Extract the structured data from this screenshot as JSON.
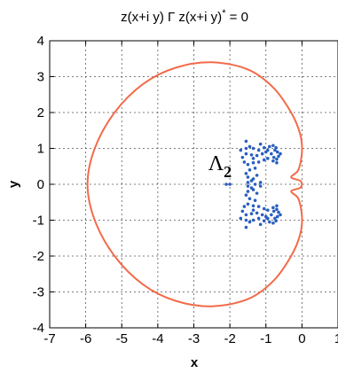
{
  "chart_data": {
    "type": "scatter",
    "title": {
      "main": "z(x+i y) Γ z(x+i y)",
      "sup": "*",
      "tail": " = 0"
    },
    "xlabel": "x",
    "ylabel": "y",
    "xlim": [
      -7,
      1
    ],
    "ylim": [
      -4,
      4
    ],
    "xticks": [
      "-7",
      "-6",
      "-5",
      "-4",
      "-3",
      "-2",
      "-1",
      "0",
      "1"
    ],
    "yticks": [
      "-4",
      "-3",
      "-2",
      "-1",
      "0",
      "1",
      "2",
      "3",
      "4"
    ],
    "grid": true,
    "annotation": {
      "text": "Λ",
      "sub": "2",
      "x": -2.6,
      "y": 0.4
    },
    "curve": {
      "color": "#f26b4a",
      "points": [
        [
          0,
          0
        ],
        [
          -0.05,
          0.1
        ],
        [
          -0.3,
          0.2
        ],
        [
          -0.1,
          0.4
        ],
        [
          0,
          0.9
        ],
        [
          -0.05,
          1.4
        ],
        [
          -0.3,
          2.0
        ],
        [
          -0.8,
          2.7
        ],
        [
          -1.5,
          3.2
        ],
        [
          -2.5,
          3.4
        ],
        [
          -3.5,
          3.25
        ],
        [
          -4.4,
          2.8
        ],
        [
          -5.2,
          2.0
        ],
        [
          -5.75,
          1.0
        ],
        [
          -5.95,
          0
        ],
        [
          -5.75,
          -1.0
        ],
        [
          -5.2,
          -2.0
        ],
        [
          -4.4,
          -2.8
        ],
        [
          -3.5,
          -3.25
        ],
        [
          -2.5,
          -3.4
        ],
        [
          -1.5,
          -3.2
        ],
        [
          -0.8,
          -2.7
        ],
        [
          -0.3,
          -2.0
        ],
        [
          -0.05,
          -1.4
        ],
        [
          0,
          -0.9
        ],
        [
          -0.1,
          -0.4
        ],
        [
          -0.3,
          -0.2
        ],
        [
          -0.05,
          -0.1
        ],
        [
          0,
          0
        ]
      ]
    },
    "points_color": "#2a5fbf",
    "points": [
      [
        -1.55,
        1.2
      ],
      [
        -1.45,
        1.05
      ],
      [
        -1.35,
        1.0
      ],
      [
        -1.2,
        0.95
      ],
      [
        -1.05,
        1.02
      ],
      [
        -0.9,
        1.05
      ],
      [
        -0.8,
        1.08
      ],
      [
        -0.72,
        1.02
      ],
      [
        -0.68,
        0.9
      ],
      [
        -0.65,
        0.78
      ],
      [
        -0.7,
        0.7
      ],
      [
        -0.78,
        0.75
      ],
      [
        -0.85,
        0.85
      ],
      [
        -1.0,
        0.9
      ],
      [
        -1.1,
        0.85
      ],
      [
        -1.25,
        0.8
      ],
      [
        -1.4,
        0.82
      ],
      [
        -1.55,
        0.85
      ],
      [
        -1.65,
        0.75
      ],
      [
        -1.6,
        0.62
      ],
      [
        -1.5,
        0.55
      ],
      [
        -1.35,
        0.6
      ],
      [
        -1.2,
        0.62
      ],
      [
        -1.05,
        0.68
      ],
      [
        -0.95,
        0.72
      ],
      [
        -1.3,
        0.45
      ],
      [
        -1.45,
        0.4
      ],
      [
        -1.55,
        0.3
      ],
      [
        -1.5,
        0.2
      ],
      [
        -1.35,
        0.15
      ],
      [
        -1.25,
        0.25
      ],
      [
        -1.4,
        0.1
      ],
      [
        -1.5,
        0.05
      ],
      [
        -1.3,
        0.0
      ],
      [
        -1.15,
        0.05
      ],
      [
        -0.75,
        0.95
      ],
      [
        -0.8,
        0.65
      ],
      [
        -0.7,
        0.6
      ],
      [
        -1.7,
        0.95
      ],
      [
        -1.15,
        1.12
      ],
      [
        -1.55,
        1.0
      ],
      [
        -0.95,
        0.95
      ],
      [
        -0.6,
        0.85
      ],
      [
        -1.35,
        0.72
      ],
      [
        -1.55,
        -1.2
      ],
      [
        -1.45,
        -1.05
      ],
      [
        -1.35,
        -1.0
      ],
      [
        -1.2,
        -0.95
      ],
      [
        -1.05,
        -1.02
      ],
      [
        -0.9,
        -1.05
      ],
      [
        -0.8,
        -1.08
      ],
      [
        -0.72,
        -1.02
      ],
      [
        -0.68,
        -0.9
      ],
      [
        -0.65,
        -0.78
      ],
      [
        -0.7,
        -0.7
      ],
      [
        -0.78,
        -0.75
      ],
      [
        -0.85,
        -0.85
      ],
      [
        -1.0,
        -0.9
      ],
      [
        -1.1,
        -0.85
      ],
      [
        -1.25,
        -0.8
      ],
      [
        -1.4,
        -0.82
      ],
      [
        -1.55,
        -0.85
      ],
      [
        -1.65,
        -0.75
      ],
      [
        -1.6,
        -0.62
      ],
      [
        -1.5,
        -0.55
      ],
      [
        -1.35,
        -0.6
      ],
      [
        -1.2,
        -0.62
      ],
      [
        -1.05,
        -0.68
      ],
      [
        -0.95,
        -0.72
      ],
      [
        -1.3,
        -0.45
      ],
      [
        -1.45,
        -0.4
      ],
      [
        -1.55,
        -0.3
      ],
      [
        -1.5,
        -0.2
      ],
      [
        -1.35,
        -0.15
      ],
      [
        -1.25,
        -0.25
      ],
      [
        -1.4,
        -0.1
      ],
      [
        -1.5,
        -0.05
      ],
      [
        -1.15,
        -0.05
      ],
      [
        -0.75,
        -0.95
      ],
      [
        -0.8,
        -0.65
      ],
      [
        -0.7,
        -0.6
      ],
      [
        -1.7,
        -0.95
      ],
      [
        -1.15,
        -1.12
      ],
      [
        -1.55,
        -1.0
      ],
      [
        -0.95,
        -0.95
      ],
      [
        -0.6,
        -0.85
      ],
      [
        -1.35,
        -0.72
      ],
      [
        -2.1,
        0.0
      ],
      [
        -2.0,
        0.0
      ]
    ]
  }
}
